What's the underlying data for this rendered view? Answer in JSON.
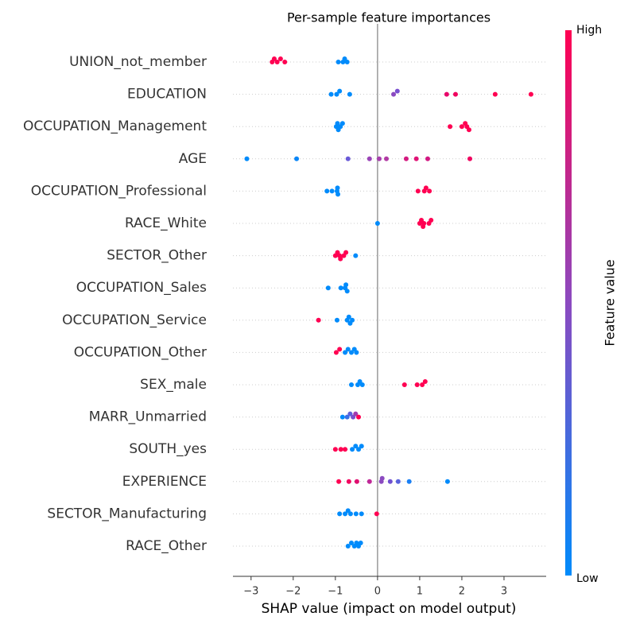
{
  "chart_data": {
    "type": "beeswarm",
    "title": "Per-sample feature importances",
    "xlabel": "SHAP value (impact on model output)",
    "xlim": [
      -3.43,
      4.0
    ],
    "xticks": [
      {
        "value": -3,
        "label": "−3"
      },
      {
        "value": -2,
        "label": "−2"
      },
      {
        "value": -1,
        "label": "−1"
      },
      0,
      1,
      2,
      3
    ],
    "colorbar": {
      "label": "Feature value",
      "high": "High",
      "low": "Low",
      "colors": [
        "#008bfb",
        "#ff0052"
      ]
    },
    "series": [
      {
        "name": "UNION_not_member",
        "values": [
          -2.5,
          -2.45,
          -2.38,
          -2.3,
          -2.2,
          -0.93,
          -0.82,
          -0.78,
          -0.72
        ],
        "colors": [
          "#ff0052",
          "#ff0052",
          "#ff0052",
          "#ff0052",
          "#ff0052",
          "#008bfb",
          "#008bfb",
          "#008bfb",
          "#008bfb"
        ]
      },
      {
        "name": "EDUCATION",
        "values": [
          -1.1,
          -0.97,
          -0.9,
          -0.66,
          0.38,
          0.47,
          1.64,
          1.85,
          2.79,
          3.64
        ],
        "colors": [
          "#008bfb",
          "#008bfb",
          "#008bfb",
          "#008bfb",
          "#8b4ac0",
          "#7a50d0",
          "#e8056a",
          "#f0035e",
          "#ff0052",
          "#ff0052"
        ]
      },
      {
        "name": "OCCUPATION_Management",
        "values": [
          -0.98,
          -0.95,
          -0.93,
          -0.88,
          -0.83,
          1.72,
          2.0,
          2.08,
          2.12,
          2.17
        ],
        "colors": [
          "#008bfb",
          "#008bfb",
          "#008bfb",
          "#008bfb",
          "#008bfb",
          "#ff0052",
          "#ff0052",
          "#ff0052",
          "#ff0052",
          "#ff0052"
        ]
      },
      {
        "name": "AGE",
        "values": [
          -3.1,
          -1.92,
          -0.7,
          -0.19,
          0.04,
          0.21,
          0.68,
          0.92,
          1.19,
          2.19
        ],
        "colors": [
          "#008bfb",
          "#0a86f7",
          "#6a5ad8",
          "#9b44b8",
          "#a83fae",
          "#b23aa4",
          "#d41a80",
          "#e01476",
          "#d21882",
          "#f00560"
        ]
      },
      {
        "name": "OCCUPATION_Professional",
        "values": [
          -1.2,
          -1.08,
          -0.96,
          -0.95,
          -0.94,
          0.96,
          1.11,
          1.15,
          1.23
        ],
        "colors": [
          "#008bfb",
          "#008bfb",
          "#008bfb",
          "#008bfb",
          "#008bfb",
          "#ff0052",
          "#ff0052",
          "#ff0052",
          "#ff0052"
        ]
      },
      {
        "name": "RACE_White",
        "values": [
          0.0,
          1.0,
          1.04,
          1.08,
          1.1,
          1.22,
          1.27
        ],
        "colors": [
          "#008bfb",
          "#ff0052",
          "#ff0052",
          "#ff0052",
          "#ff0052",
          "#ff0052",
          "#ff0052"
        ]
      },
      {
        "name": "SECTOR_Other",
        "values": [
          -1.0,
          -0.95,
          -0.9,
          -0.88,
          -0.8,
          -0.75,
          -0.52
        ],
        "colors": [
          "#ff0052",
          "#ff0052",
          "#ff0052",
          "#ff0052",
          "#ff0052",
          "#ff0052",
          "#008bfb"
        ]
      },
      {
        "name": "OCCUPATION_Sales",
        "values": [
          -1.17,
          -0.87,
          -0.77,
          -0.75,
          -0.72
        ],
        "colors": [
          "#008bfb",
          "#008bfb",
          "#008bfb",
          "#008bfb",
          "#008bfb"
        ]
      },
      {
        "name": "OCCUPATION_Service",
        "values": [
          -1.4,
          -0.96,
          -0.72,
          -0.68,
          -0.65,
          -0.6
        ],
        "colors": [
          "#ff0052",
          "#008bfb",
          "#008bfb",
          "#008bfb",
          "#008bfb",
          "#008bfb"
        ]
      },
      {
        "name": "OCCUPATION_Other",
        "values": [
          -0.98,
          -0.9,
          -0.77,
          -0.7,
          -0.62,
          -0.55,
          -0.5
        ],
        "colors": [
          "#ff0052",
          "#ff0052",
          "#008bfb",
          "#008bfb",
          "#008bfb",
          "#008bfb",
          "#008bfb"
        ]
      },
      {
        "name": "SEX_male",
        "values": [
          -0.62,
          -0.47,
          -0.42,
          -0.36,
          0.64,
          0.94,
          1.06,
          1.13
        ],
        "colors": [
          "#008bfb",
          "#008bfb",
          "#008bfb",
          "#008bfb",
          "#ff0052",
          "#ff0052",
          "#ff0052",
          "#ff0052"
        ]
      },
      {
        "name": "MARR_Unmarried",
        "values": [
          -0.83,
          -0.72,
          -0.65,
          -0.58,
          -0.52,
          -0.45
        ],
        "colors": [
          "#008bfb",
          "#3a70e8",
          "#5d60dc",
          "#7850cc",
          "#a03cb0",
          "#ff0052"
        ]
      },
      {
        "name": "SOUTH_yes",
        "values": [
          -1.0,
          -0.87,
          -0.77,
          -0.6,
          -0.52,
          -0.45,
          -0.38
        ],
        "colors": [
          "#ff0052",
          "#ff0052",
          "#ff0052",
          "#008bfb",
          "#008bfb",
          "#008bfb",
          "#008bfb"
        ]
      },
      {
        "name": "EXPERIENCE",
        "values": [
          -0.92,
          -0.68,
          -0.49,
          -0.19,
          0.09,
          0.11,
          0.3,
          0.49,
          0.75,
          1.66
        ],
        "colors": [
          "#ff0052",
          "#f20560",
          "#e00f70",
          "#c02898",
          "#8b4ac0",
          "#8b4ac0",
          "#7050d0",
          "#5a62dc",
          "#1a80f5",
          "#008bfb"
        ]
      },
      {
        "name": "SECTOR_Manufacturing",
        "values": [
          -0.9,
          -0.77,
          -0.7,
          -0.64,
          -0.51,
          -0.38,
          -0.02
        ],
        "colors": [
          "#008bfb",
          "#008bfb",
          "#008bfb",
          "#008bfb",
          "#008bfb",
          "#008bfb",
          "#ff0052"
        ]
      },
      {
        "name": "RACE_Other",
        "values": [
          -0.7,
          -0.62,
          -0.55,
          -0.5,
          -0.45,
          -0.4
        ],
        "colors": [
          "#008bfb",
          "#008bfb",
          "#008bfb",
          "#008bfb",
          "#008bfb",
          "#008bfb"
        ]
      }
    ]
  }
}
